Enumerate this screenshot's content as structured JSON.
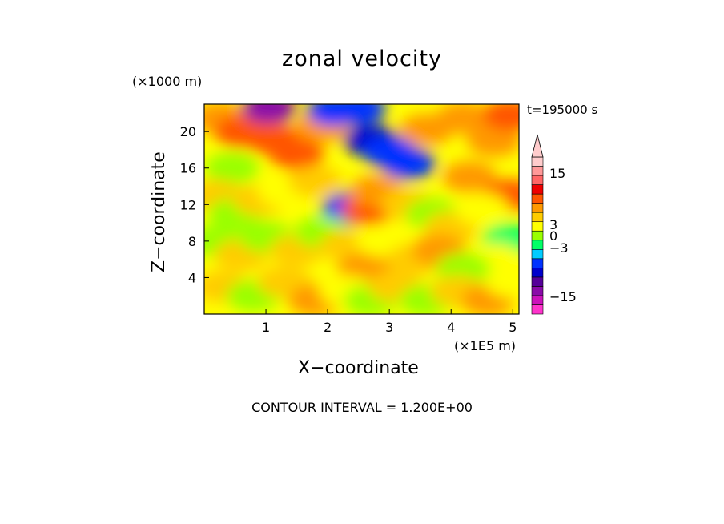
{
  "chart_data": {
    "type": "heatmap",
    "title": "zonal velocity",
    "xlabel": "X−coordinate",
    "ylabel": "Z−coordinate",
    "x_unit": "(×1E5 m)",
    "y_unit": "(×1000 m)",
    "time_label": "t=195000 s",
    "contour_interval_text": "CONTOUR INTERVAL = 1.200E+00",
    "xlim": [
      0,
      5.1
    ],
    "ylim": [
      0,
      23
    ],
    "x_ticks": [
      {
        "value": 1,
        "label": "1"
      },
      {
        "value": 2,
        "label": "2"
      },
      {
        "value": 3,
        "label": "3"
      },
      {
        "value": 4,
        "label": "4"
      },
      {
        "value": 5,
        "label": "5"
      }
    ],
    "y_ticks": [
      {
        "value": 4,
        "label": "4"
      },
      {
        "value": 8,
        "label": "8"
      },
      {
        "value": 12,
        "label": "12"
      },
      {
        "value": 16,
        "label": "16"
      },
      {
        "value": 20,
        "label": "20"
      }
    ],
    "colorbar": {
      "colors": [
        "#ff33cc",
        "#cc11bb",
        "#8a0aa8",
        "#550099",
        "#0000cc",
        "#0033ff",
        "#00ccff",
        "#00ff66",
        "#99ff00",
        "#ffff00",
        "#ffcc00",
        "#ff9900",
        "#ff5500",
        "#ee0000",
        "#ff6666",
        "#ff9999",
        "#ffcccc"
      ],
      "labels": [
        {
          "value": 15,
          "label": "15"
        },
        {
          "value": 3,
          "label": "3"
        },
        {
          "value": 0,
          "label": "0"
        },
        {
          "value": -3,
          "label": "−3"
        },
        {
          "value": -15,
          "label": "−15"
        }
      ]
    },
    "blobs": [
      {
        "x": 0.25,
        "y": 21.5,
        "value": 3
      },
      {
        "x": 0.6,
        "y": 20,
        "value": 5
      },
      {
        "x": 1.05,
        "y": 22.6,
        "value": -10
      },
      {
        "x": 1.1,
        "y": 19.2,
        "value": 6
      },
      {
        "x": 1.5,
        "y": 17.5,
        "value": 5
      },
      {
        "x": 1.9,
        "y": 20.5,
        "value": 4
      },
      {
        "x": 2.1,
        "y": 22.3,
        "value": -4
      },
      {
        "x": 2.5,
        "y": 22.5,
        "value": -5
      },
      {
        "x": 2.7,
        "y": 19,
        "value": -7
      },
      {
        "x": 3.0,
        "y": 17.8,
        "value": -6
      },
      {
        "x": 3.3,
        "y": 16.5,
        "value": -4
      },
      {
        "x": 3.6,
        "y": 20.2,
        "value": 4
      },
      {
        "x": 4.2,
        "y": 21.5,
        "value": 4
      },
      {
        "x": 4.7,
        "y": 19,
        "value": 3
      },
      {
        "x": 4.95,
        "y": 21.8,
        "value": 6
      },
      {
        "x": 4.3,
        "y": 15,
        "value": 3
      },
      {
        "x": 4.95,
        "y": 13,
        "value": 5
      },
      {
        "x": 0.45,
        "y": 16,
        "value": -0.5
      },
      {
        "x": 0.2,
        "y": 13,
        "value": 2
      },
      {
        "x": 0.5,
        "y": 11,
        "value": -1
      },
      {
        "x": 0.9,
        "y": 12.5,
        "value": 1.5
      },
      {
        "x": 1.3,
        "y": 13.5,
        "value": 0.5
      },
      {
        "x": 1.8,
        "y": 14.5,
        "value": 2
      },
      {
        "x": 2.35,
        "y": 11.6,
        "value": -6
      },
      {
        "x": 2.65,
        "y": 11.5,
        "value": 7
      },
      {
        "x": 2.8,
        "y": 13.5,
        "value": 3
      },
      {
        "x": 3.3,
        "y": 12,
        "value": 2
      },
      {
        "x": 3.7,
        "y": 11,
        "value": -0.5
      },
      {
        "x": 4.0,
        "y": 9.5,
        "value": 2
      },
      {
        "x": 4.5,
        "y": 11.5,
        "value": 0.5
      },
      {
        "x": 4.95,
        "y": 8.2,
        "value": -2
      },
      {
        "x": 4.7,
        "y": 6,
        "value": 0.5
      },
      {
        "x": 0.2,
        "y": 8,
        "value": -1
      },
      {
        "x": 0.6,
        "y": 6.5,
        "value": 2
      },
      {
        "x": 1.0,
        "y": 8.5,
        "value": -1
      },
      {
        "x": 1.5,
        "y": 7,
        "value": 2
      },
      {
        "x": 1.9,
        "y": 9,
        "value": -0.5
      },
      {
        "x": 2.3,
        "y": 7.5,
        "value": 2
      },
      {
        "x": 2.6,
        "y": 5,
        "value": 3
      },
      {
        "x": 2.9,
        "y": 8,
        "value": 1
      },
      {
        "x": 3.4,
        "y": 6,
        "value": 2
      },
      {
        "x": 3.8,
        "y": 7,
        "value": 4
      },
      {
        "x": 4.2,
        "y": 5,
        "value": -0.5
      },
      {
        "x": 0.3,
        "y": 3,
        "value": 2
      },
      {
        "x": 0.8,
        "y": 2,
        "value": -1
      },
      {
        "x": 1.3,
        "y": 3.5,
        "value": 1.5
      },
      {
        "x": 1.8,
        "y": 1.5,
        "value": 4
      },
      {
        "x": 2.3,
        "y": 2.5,
        "value": 0.5
      },
      {
        "x": 2.7,
        "y": 1.5,
        "value": -1
      },
      {
        "x": 3.1,
        "y": 3,
        "value": 1.5
      },
      {
        "x": 3.6,
        "y": 1.5,
        "value": -0.5
      },
      {
        "x": 4.1,
        "y": 2.5,
        "value": 2
      },
      {
        "x": 4.6,
        "y": 1.5,
        "value": 4
      },
      {
        "x": 5.0,
        "y": 3.5,
        "value": 1
      }
    ]
  }
}
